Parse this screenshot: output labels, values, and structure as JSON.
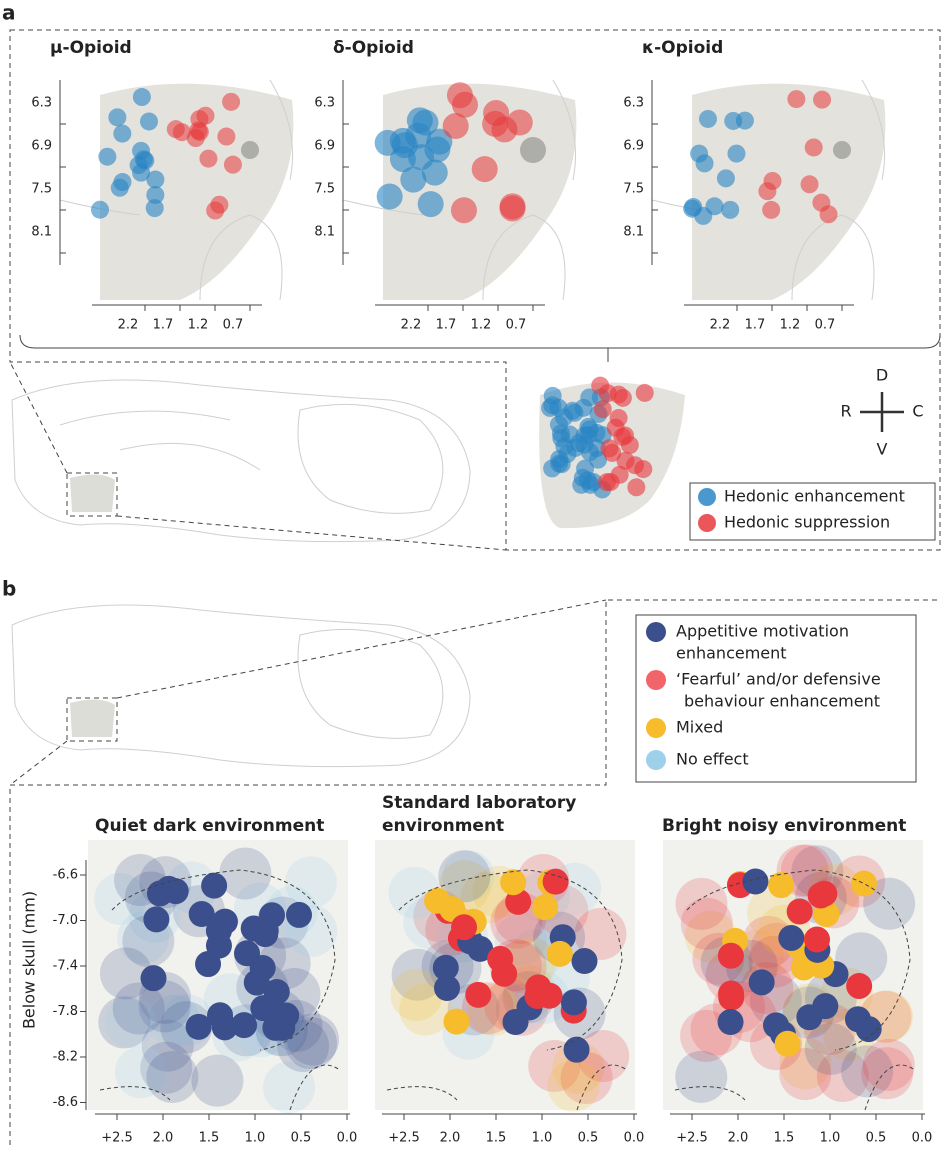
{
  "panel_a": {
    "label": "a",
    "plots": [
      {
        "title": "μ-Opioid"
      },
      {
        "title": "δ-Opioid"
      },
      {
        "title": "κ-Opioid"
      }
    ],
    "y_ticks": [
      "6.3",
      "6.9",
      "7.5",
      "8.1"
    ],
    "x_ticks": [
      "2.2",
      "1.7",
      "1.2",
      "0.7"
    ],
    "compass": {
      "d": "D",
      "r": "R",
      "c": "C",
      "v": "V"
    },
    "legend": [
      "Hedonic enhancement",
      "Hedonic suppression"
    ]
  },
  "panel_b": {
    "label": "b",
    "legend": [
      [
        "Appetitive motivation",
        "enhancement"
      ],
      [
        "‘Fearful’ and/or defensive",
        "behaviour enhancement"
      ],
      [
        "Mixed"
      ],
      [
        "No effect"
      ]
    ],
    "plots": [
      {
        "title": [
          "Quiet dark environment"
        ]
      },
      {
        "title": [
          "Standard laboratory",
          "environment"
        ]
      },
      {
        "title": [
          "Bright noisy environment"
        ]
      }
    ],
    "y_label": "Below skull (mm)",
    "y_ticks": [
      "-6.6",
      "-7.0",
      "-7.4",
      "-7.8",
      "-8.2",
      "-8.6"
    ],
    "x_ticks": [
      "+2.5",
      "2.0",
      "1.5",
      "1.0",
      "0.5",
      "0.0"
    ]
  }
}
